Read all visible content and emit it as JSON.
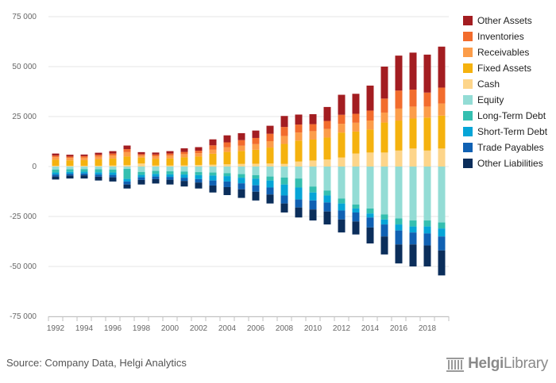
{
  "source_text": "Source: Company Data, Helgi Analytics",
  "brand": {
    "name_bold": "Helgi",
    "name_light": "Library"
  },
  "chart_data": {
    "type": "bar",
    "stacked": true,
    "x": [
      1992,
      1993,
      1994,
      1995,
      1996,
      1997,
      1998,
      1999,
      2000,
      2001,
      2002,
      2003,
      2004,
      2005,
      2006,
      2007,
      2008,
      2009,
      2010,
      2011,
      2012,
      2013,
      2014,
      2015,
      2016,
      2017,
      2018,
      2019
    ],
    "x_tick_labels": [
      "1992",
      "1994",
      "1996",
      "1998",
      "2000",
      "2002",
      "2004",
      "2006",
      "2008",
      "2010",
      "2012",
      "2014",
      "2016",
      "2018"
    ],
    "ylim": [
      -75000,
      75000
    ],
    "y_ticks": [
      75000,
      50000,
      25000,
      0,
      -25000,
      -50000,
      -75000
    ],
    "y_tick_labels": [
      "75 000",
      "50 000",
      "25 000",
      "0",
      "-25 000",
      "-50 000",
      "-75 000"
    ],
    "grid": true,
    "legend_position": "right",
    "series": [
      {
        "name": "Cash",
        "color": "#fdd58a",
        "side": "asset",
        "values": [
          400,
          400,
          400,
          400,
          500,
          700,
          1500,
          500,
          500,
          600,
          800,
          900,
          1100,
          1300,
          1400,
          1500,
          1300,
          2500,
          3000,
          3500,
          4500,
          6500,
          7000,
          7000,
          8000,
          9000,
          8000,
          9000
        ]
      },
      {
        "name": "Fixed Assets",
        "color": "#f5b20e",
        "side": "asset",
        "values": [
          3000,
          2700,
          2800,
          3200,
          3500,
          4300,
          3000,
          3300,
          3600,
          4000,
          4200,
          5500,
          6200,
          6500,
          7000,
          8000,
          10000,
          10500,
          10500,
          11000,
          12500,
          11000,
          11500,
          15000,
          15000,
          15000,
          16500,
          16500
        ]
      },
      {
        "name": "Receivables",
        "color": "#fc9d4a",
        "side": "asset",
        "values": [
          1300,
          1200,
          1200,
          1400,
          1500,
          2200,
          1000,
          1300,
          1400,
          1600,
          1700,
          2000,
          2300,
          2600,
          2800,
          3200,
          4000,
          4000,
          4200,
          4300,
          4400,
          4400,
          4500,
          5000,
          6000,
          6000,
          5500,
          6000
        ]
      },
      {
        "name": "Inventories",
        "color": "#f26c2d",
        "side": "asset",
        "values": [
          800,
          700,
          800,
          900,
          1000,
          1500,
          700,
          900,
          1000,
          1100,
          1200,
          2200,
          2500,
          2800,
          3100,
          3700,
          4500,
          4000,
          3500,
          4000,
          4500,
          4500,
          5000,
          7000,
          9000,
          8500,
          7000,
          8000
        ]
      },
      {
        "name": "Other Assets",
        "color": "#a31d21",
        "side": "asset",
        "values": [
          1000,
          900,
          800,
          1000,
          1200,
          1800,
          1000,
          1000,
          1200,
          1800,
          1800,
          3000,
          3500,
          3500,
          3700,
          4000,
          5500,
          5000,
          5000,
          7000,
          10000,
          10000,
          12500,
          16000,
          17500,
          18500,
          19000,
          20500
        ]
      },
      {
        "name": "Equity",
        "color": "#93dcd5",
        "side": "liability",
        "values": [
          -1500,
          -1400,
          -1300,
          -1400,
          -1500,
          -1200,
          -2700,
          -2200,
          -2400,
          -2500,
          -2800,
          -3000,
          -3300,
          -3800,
          -4300,
          -5000,
          -5500,
          -6000,
          -10000,
          -12000,
          -16000,
          -19000,
          -21000,
          -24000,
          -26000,
          -27000,
          -27000,
          -28000
        ]
      },
      {
        "name": "Long-Term Debt",
        "color": "#34bfb0",
        "side": "liability",
        "values": [
          -1500,
          -1300,
          -1300,
          -1500,
          -1500,
          -5000,
          -1500,
          -1500,
          -1500,
          -1500,
          -1500,
          -1500,
          -1500,
          -1800,
          -1800,
          -2000,
          -3500,
          -4500,
          -3000,
          -2500,
          -2500,
          -2000,
          -2500,
          -2500,
          -3000,
          -3000,
          -3000,
          -3000
        ]
      },
      {
        "name": "Short-Term Debt",
        "color": "#06a5d7",
        "side": "liability",
        "values": [
          -1000,
          -900,
          -900,
          -1100,
          -1200,
          -1300,
          -1200,
          -1300,
          -1300,
          -1600,
          -2000,
          -2500,
          -2700,
          -2800,
          -3300,
          -3500,
          -5500,
          -6000,
          -4000,
          -3500,
          -3500,
          -2000,
          -2000,
          -2500,
          -3000,
          -3000,
          -3500,
          -4000
        ]
      },
      {
        "name": "Trade Payables",
        "color": "#1061b3",
        "side": "liability",
        "values": [
          -1000,
          -900,
          -900,
          -1100,
          -1200,
          -1500,
          -1300,
          -1300,
          -1400,
          -1600,
          -1700,
          -2500,
          -2800,
          -3000,
          -3200,
          -3500,
          -4000,
          -4000,
          -4500,
          -4500,
          -4500,
          -4500,
          -5000,
          -6000,
          -7000,
          -6000,
          -6000,
          -7000
        ]
      },
      {
        "name": "Other Liabilities",
        "color": "#0b2e5b",
        "side": "liability",
        "values": [
          -1500,
          -1500,
          -1600,
          -1900,
          -2100,
          -2000,
          -2300,
          -2200,
          -2400,
          -2800,
          -3000,
          -3500,
          -4000,
          -4300,
          -4400,
          -4500,
          -4500,
          -5000,
          -5500,
          -6500,
          -6500,
          -6500,
          -8000,
          -9000,
          -9500,
          -11000,
          -10500,
          -12500
        ]
      }
    ],
    "legend_order": [
      "Other Assets",
      "Inventories",
      "Receivables",
      "Fixed Assets",
      "Cash",
      "Equity",
      "Long-Term Debt",
      "Short-Term Debt",
      "Trade Payables",
      "Other Liabilities"
    ]
  }
}
